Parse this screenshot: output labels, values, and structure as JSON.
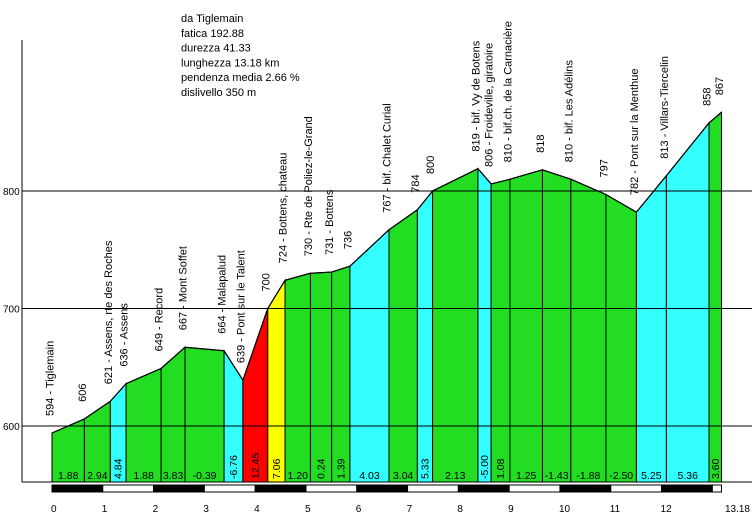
{
  "colors": {
    "moderate": "#22dd22",
    "steep": "#33ffff",
    "very_steep": "#ffff00",
    "extreme": "#ff0000",
    "line": "#000000",
    "scale_dark": "#000000",
    "scale_light": "#ffffff"
  },
  "chart_data": {
    "type": "area",
    "annotations": [
      "da Tiglemain",
      "fatica 192.88",
      "durezza 41.33",
      "lunghezza 13.18 km",
      "pendenza media 2.66 %",
      "dislivello 350 m"
    ],
    "xlim": [
      0,
      13.18
    ],
    "ylim": [
      552.3,
      928.5
    ],
    "grid": true,
    "y_ticks": [
      "600",
      "700",
      "800"
    ],
    "x_ticks": [
      "0",
      "1",
      "2",
      "3",
      "4",
      "5",
      "6",
      "7",
      "8",
      "9",
      "10",
      "11",
      "12",
      "13.18"
    ],
    "points": [
      {
        "km": 0,
        "elev": 594,
        "label": "594 - Tiglemain"
      },
      {
        "km": 0.638,
        "elev": 606,
        "label": "606"
      },
      {
        "km": 1.148,
        "elev": 621,
        "label": "621 - Assens, rte des Roches"
      },
      {
        "km": 1.458,
        "elev": 636,
        "label": "636 - Assens"
      },
      {
        "km": 2.149,
        "elev": 649,
        "label": "649 - Record"
      },
      {
        "km": 2.619,
        "elev": 667,
        "label": "667 - Mont Soffet"
      },
      {
        "km": 3.388,
        "elev": 664,
        "label": "664 - Malapalud"
      },
      {
        "km": 3.758,
        "elev": 639,
        "label": "639 - Pont sur le Talent"
      },
      {
        "km": 4.248,
        "elev": 700,
        "label": "700"
      },
      {
        "km": 4.588,
        "elev": 724,
        "label": "724 - Bottens, chateau"
      },
      {
        "km": 5.088,
        "elev": 730,
        "label": "730 - Rte de Poliez-le-Grand"
      },
      {
        "km": 5.505,
        "elev": 731,
        "label": "731 - Bottens"
      },
      {
        "km": 5.865,
        "elev": 736,
        "label": "736"
      },
      {
        "km": 6.634,
        "elev": 767,
        "label": "767 - bif. Chalet Curial"
      },
      {
        "km": 7.193,
        "elev": 784,
        "label": "784"
      },
      {
        "km": 7.493,
        "elev": 800,
        "label": "800"
      },
      {
        "km": 8.385,
        "elev": 819,
        "label": "819 - bif. Vy de Botens"
      },
      {
        "km": 8.645,
        "elev": 806,
        "label": "806 - Froideville, giratoire"
      },
      {
        "km": 9.015,
        "elev": 810,
        "label": "810 - bif.ch. de la Carnacière"
      },
      {
        "km": 9.655,
        "elev": 818,
        "label": "818"
      },
      {
        "km": 10.214,
        "elev": 810,
        "label": "810 - bif. Les Adélins"
      },
      {
        "km": 10.905,
        "elev": 797,
        "label": "797"
      },
      {
        "km": 11.505,
        "elev": 782,
        "label": "782 - Pont sur la Menthue"
      },
      {
        "km": 12.095,
        "elev": 813,
        "label": "813 - Villars-Tiercelin"
      },
      {
        "km": 12.935,
        "elev": 858,
        "label": "858"
      },
      {
        "km": 13.18,
        "elev": 867,
        "label": "867"
      }
    ],
    "segments": [
      {
        "gradient": "1.88"
      },
      {
        "gradient": "2.94"
      },
      {
        "gradient": "4.84"
      },
      {
        "gradient": "1.88"
      },
      {
        "gradient": "3.83"
      },
      {
        "gradient": "-0.39"
      },
      {
        "gradient": "-6.76"
      },
      {
        "gradient": "12.45"
      },
      {
        "gradient": "7.06"
      },
      {
        "gradient": "1.20"
      },
      {
        "gradient": "0.24"
      },
      {
        "gradient": "1.39"
      },
      {
        "gradient": "4.03"
      },
      {
        "gradient": "3.04"
      },
      {
        "gradient": "5.33"
      },
      {
        "gradient": "2.13"
      },
      {
        "gradient": "-5.00"
      },
      {
        "gradient": "1.08"
      },
      {
        "gradient": "1.25"
      },
      {
        "gradient": "-1.43"
      },
      {
        "gradient": "-1.88"
      },
      {
        "gradient": "-2.50"
      },
      {
        "gradient": "5.25"
      },
      {
        "gradient": "5.36"
      },
      {
        "gradient": "3.60"
      }
    ]
  }
}
